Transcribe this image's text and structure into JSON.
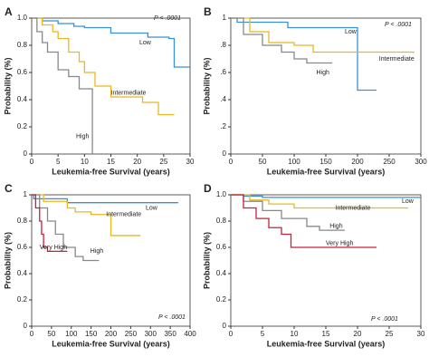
{
  "chart_data": [
    {
      "type": "line",
      "panel": "A",
      "p_value": "P < .0001",
      "x_label": "Leukemia-free Survival (years)",
      "y_label": "Probability (%)",
      "xlim": [
        0,
        30
      ],
      "xticks": [
        0,
        5,
        10,
        15,
        20,
        25,
        30
      ],
      "ylim": [
        0,
        1
      ],
      "yticks": [
        0,
        0.2,
        0.4,
        0.6,
        0.8,
        {
          "value": 1,
          "label": "1.0"
        }
      ],
      "series": [
        {
          "name": "Low",
          "color": "#3a8fd8",
          "x": [
            0,
            2,
            5,
            8,
            10,
            15,
            22,
            26,
            27,
            30
          ],
          "values": [
            1,
            0.98,
            0.96,
            0.94,
            0.93,
            0.89,
            0.86,
            0.85,
            0.64,
            0.64
          ]
        },
        {
          "name": "Intermediate",
          "color": "#e8b820",
          "x": [
            0,
            2,
            4,
            5,
            7,
            9,
            10,
            12,
            15,
            21,
            24,
            27
          ],
          "values": [
            1,
            0.95,
            0.9,
            0.85,
            0.75,
            0.68,
            0.6,
            0.5,
            0.42,
            0.38,
            0.29,
            0.29
          ]
        },
        {
          "name": "High",
          "color": "#888888",
          "x": [
            0,
            1,
            2,
            3,
            5,
            7,
            9,
            11.5
          ],
          "values": [
            1,
            0.9,
            0.82,
            0.75,
            0.62,
            0.57,
            0.48,
            0
          ]
        }
      ]
    },
    {
      "type": "line",
      "panel": "B",
      "p_value": "P < .0001",
      "x_label": "Leukemia-free Survival (years)",
      "y_label": "Probability (%)",
      "xlim": [
        0,
        300
      ],
      "xticks": [
        0,
        50,
        100,
        150,
        200,
        250,
        300
      ],
      "ylim": [
        0,
        1
      ],
      "yticks": [
        0,
        {
          "value": 0.2,
          "label": ".2"
        },
        {
          "value": 0.4,
          "label": ".4"
        },
        {
          "value": 0.6,
          "label": ".6"
        },
        {
          "value": 0.8,
          "label": ".8"
        },
        1
      ],
      "series": [
        {
          "name": "Low",
          "color": "#3a8fd8",
          "x": [
            0,
            10,
            90,
            200,
            230
          ],
          "values": [
            1,
            0.97,
            0.93,
            0.47,
            0.47
          ]
        },
        {
          "name": "Intermediate",
          "color": "#e8b820",
          "x": [
            0,
            30,
            60,
            100,
            130,
            290
          ],
          "values": [
            1,
            0.9,
            0.82,
            0.8,
            0.75,
            0.75
          ]
        },
        {
          "name": "High",
          "color": "#888888",
          "x": [
            0,
            20,
            50,
            80,
            100,
            120,
            160
          ],
          "values": [
            1,
            0.88,
            0.8,
            0.75,
            0.7,
            0.67,
            0.67
          ]
        }
      ]
    },
    {
      "type": "line",
      "panel": "C",
      "p_value": "P < .0001",
      "x_label": "Leukemia-free Survival (years)",
      "y_label": "Probability (%)",
      "xlim": [
        0,
        400
      ],
      "xticks": [
        0,
        50,
        100,
        150,
        200,
        250,
        300,
        350,
        400
      ],
      "ylim": [
        0,
        1
      ],
      "yticks": [
        0,
        0.2,
        0.4,
        0.6,
        0.8,
        1
      ],
      "series": [
        {
          "name": "Low",
          "color": "#3a8fd8",
          "x": [
            0,
            5,
            90,
            370
          ],
          "values": [
            1,
            0.97,
            0.94,
            0.94
          ]
        },
        {
          "name": "Intermediate",
          "color": "#e8b820",
          "x": [
            0,
            30,
            90,
            110,
            150,
            200,
            275
          ],
          "values": [
            1,
            0.95,
            0.9,
            0.87,
            0.85,
            0.69,
            0.69
          ]
        },
        {
          "name": "High",
          "color": "#888888",
          "x": [
            0,
            20,
            40,
            60,
            80,
            110,
            130,
            170
          ],
          "values": [
            1,
            0.9,
            0.8,
            0.7,
            0.6,
            0.53,
            0.5,
            0.5
          ]
        },
        {
          "name": "Very High",
          "color": "#c8203a",
          "x": [
            0,
            10,
            20,
            25,
            30,
            40,
            90
          ],
          "values": [
            1,
            0.9,
            0.8,
            0.7,
            0.6,
            0.57,
            0.57
          ]
        }
      ]
    },
    {
      "type": "line",
      "panel": "D",
      "p_value": "P < .0001",
      "x_label": "Leukemia-free Survival (years)",
      "y_label": "Probability (%)",
      "xlim": [
        0,
        30
      ],
      "xticks": [
        0,
        5,
        10,
        15,
        20,
        25,
        30
      ],
      "ylim": [
        0,
        1
      ],
      "yticks": [
        0,
        0.2,
        0.4,
        0.6,
        0.8,
        {
          "value": 1,
          "label": "1.0"
        }
      ],
      "series": [
        {
          "name": "Low",
          "color": "#3a8fd8",
          "x": [
            0,
            2,
            5,
            30
          ],
          "values": [
            1,
            0.99,
            0.98,
            0.98
          ]
        },
        {
          "name": "Intermediate",
          "color": "#e8b820",
          "x": [
            0,
            3,
            6,
            10,
            28
          ],
          "values": [
            1,
            0.96,
            0.93,
            0.9,
            0.9
          ]
        },
        {
          "name": "High",
          "color": "#888888",
          "x": [
            0,
            2,
            5,
            8,
            12,
            14,
            18
          ],
          "values": [
            1,
            0.95,
            0.88,
            0.82,
            0.76,
            0.73,
            0.73
          ]
        },
        {
          "name": "Very High",
          "color": "#c8203a",
          "x": [
            0,
            2,
            4,
            6,
            8,
            9.5,
            23
          ],
          "values": [
            1,
            0.9,
            0.82,
            0.75,
            0.7,
            0.6,
            0.6
          ]
        }
      ]
    }
  ]
}
